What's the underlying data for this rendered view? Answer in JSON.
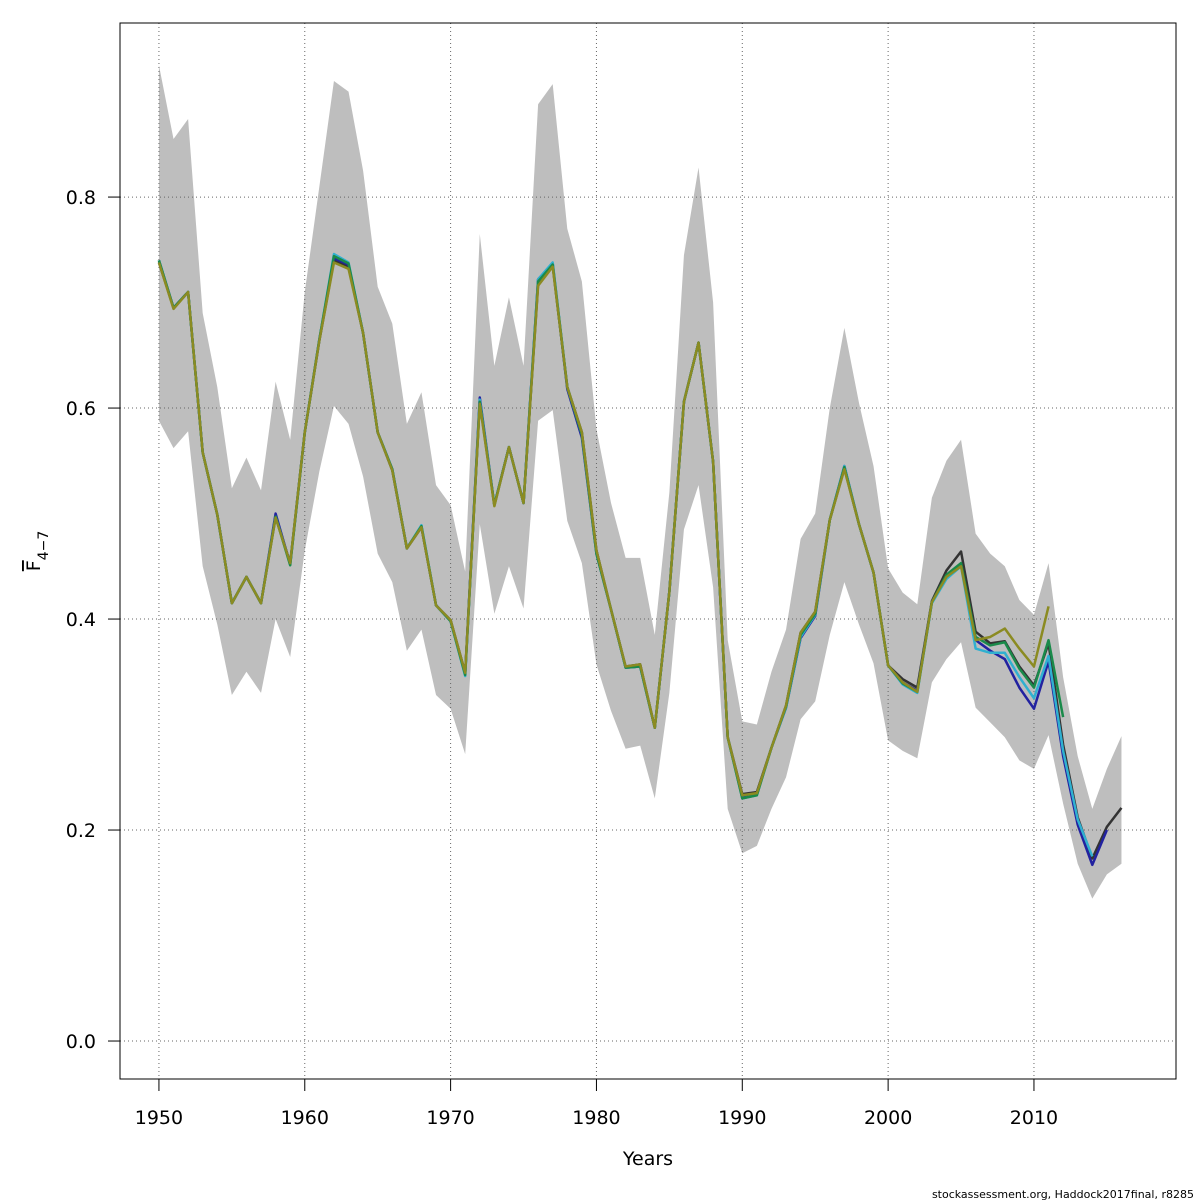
{
  "chart_data": {
    "type": "line",
    "xlabel": "Years",
    "ylabel": {
      "main": "F",
      "sub": "4−7"
    },
    "footnote": "stockassessment.org, Haddock2017final, r8285",
    "x": [
      1950,
      1951,
      1952,
      1953,
      1954,
      1955,
      1956,
      1957,
      1958,
      1959,
      1960,
      1961,
      1962,
      1963,
      1964,
      1965,
      1966,
      1967,
      1968,
      1969,
      1970,
      1971,
      1972,
      1973,
      1974,
      1975,
      1976,
      1977,
      1978,
      1979,
      1980,
      1981,
      1982,
      1983,
      1984,
      1985,
      1986,
      1987,
      1988,
      1989,
      1990,
      1991,
      1992,
      1993,
      1994,
      1995,
      1996,
      1997,
      1998,
      1999,
      2000,
      2001,
      2002,
      2003,
      2004,
      2005,
      2006,
      2007,
      2008,
      2009,
      2010,
      2011,
      2012,
      2013,
      2014,
      2015,
      2016
    ],
    "band": {
      "color": "#bebebe",
      "upper": [
        0.925,
        0.855,
        0.874,
        0.69,
        0.62,
        0.524,
        0.553,
        0.522,
        0.625,
        0.57,
        0.71,
        0.81,
        0.91,
        0.9,
        0.825,
        0.715,
        0.68,
        0.585,
        0.615,
        0.527,
        0.508,
        0.445,
        0.765,
        0.64,
        0.705,
        0.64,
        0.888,
        0.907,
        0.77,
        0.72,
        0.58,
        0.51,
        0.458,
        0.458,
        0.385,
        0.52,
        0.745,
        0.828,
        0.7,
        0.38,
        0.303,
        0.3,
        0.35,
        0.39,
        0.476,
        0.5,
        0.6,
        0.676,
        0.605,
        0.545,
        0.448,
        0.425,
        0.414,
        0.515,
        0.55,
        0.57,
        0.481,
        0.462,
        0.45,
        0.418,
        0.404,
        0.453,
        0.345,
        0.27,
        0.22,
        0.258,
        0.289
      ],
      "lower": [
        0.588,
        0.562,
        0.578,
        0.45,
        0.395,
        0.328,
        0.35,
        0.33,
        0.4,
        0.364,
        0.465,
        0.54,
        0.602,
        0.585,
        0.535,
        0.462,
        0.435,
        0.37,
        0.39,
        0.328,
        0.315,
        0.272,
        0.49,
        0.405,
        0.45,
        0.41,
        0.588,
        0.598,
        0.493,
        0.453,
        0.357,
        0.313,
        0.277,
        0.28,
        0.23,
        0.33,
        0.485,
        0.527,
        0.43,
        0.22,
        0.178,
        0.185,
        0.22,
        0.25,
        0.305,
        0.322,
        0.385,
        0.435,
        0.395,
        0.358,
        0.285,
        0.275,
        0.268,
        0.34,
        0.362,
        0.378,
        0.316,
        0.302,
        0.288,
        0.266,
        0.258,
        0.29,
        0.225,
        0.168,
        0.135,
        0.158,
        0.168
      ]
    },
    "series": [
      {
        "color": "#333333",
        "values": [
          0.738,
          0.695,
          0.71,
          0.558,
          0.499,
          0.415,
          0.44,
          0.415,
          0.497,
          0.453,
          0.577,
          0.664,
          0.74,
          0.734,
          0.671,
          0.577,
          0.541,
          0.467,
          0.487,
          0.413,
          0.399,
          0.349,
          0.606,
          0.508,
          0.563,
          0.51,
          0.718,
          0.735,
          0.62,
          0.577,
          0.465,
          0.409,
          0.355,
          0.357,
          0.297,
          0.426,
          0.606,
          0.662,
          0.549,
          0.288,
          0.234,
          0.236,
          0.278,
          0.318,
          0.387,
          0.407,
          0.494,
          0.543,
          0.49,
          0.444,
          0.356,
          0.343,
          0.335,
          0.417,
          0.446,
          0.464,
          0.388,
          0.377,
          0.379,
          0.355,
          0.337,
          0.377,
          0.281,
          0.212,
          0.173,
          0.203,
          0.221
        ]
      },
      {
        "color": "#2222a0",
        "values": [
          0.74,
          0.695,
          0.71,
          0.558,
          0.499,
          0.415,
          0.44,
          0.415,
          0.5,
          0.452,
          0.577,
          0.665,
          0.742,
          0.736,
          0.671,
          0.577,
          0.542,
          0.467,
          0.488,
          0.413,
          0.398,
          0.348,
          0.61,
          0.508,
          0.563,
          0.51,
          0.722,
          0.737,
          0.618,
          0.572,
          0.462,
          0.409,
          0.354,
          0.355,
          0.297,
          0.426,
          0.606,
          0.662,
          0.549,
          0.288,
          0.231,
          0.234,
          0.278,
          0.316,
          0.382,
          0.403,
          0.494,
          0.545,
          0.49,
          0.444,
          0.356,
          0.34,
          0.332,
          0.416,
          0.44,
          0.452,
          0.38,
          0.37,
          0.362,
          0.335,
          0.315,
          0.36,
          0.27,
          0.205,
          0.167,
          0.2,
          null
        ]
      },
      {
        "color": "#30b0d0",
        "values": [
          0.74,
          0.695,
          0.71,
          0.558,
          0.499,
          0.415,
          0.44,
          0.415,
          0.497,
          0.452,
          0.577,
          0.665,
          0.746,
          0.738,
          0.671,
          0.577,
          0.542,
          0.467,
          0.489,
          0.413,
          0.398,
          0.346,
          0.608,
          0.508,
          0.563,
          0.51,
          0.722,
          0.738,
          0.62,
          0.575,
          0.462,
          0.409,
          0.354,
          0.355,
          0.297,
          0.426,
          0.606,
          0.662,
          0.549,
          0.288,
          0.23,
          0.233,
          0.278,
          0.316,
          0.383,
          0.404,
          0.494,
          0.545,
          0.49,
          0.444,
          0.356,
          0.338,
          0.33,
          0.415,
          0.438,
          0.45,
          0.372,
          0.368,
          0.368,
          0.345,
          0.325,
          0.365,
          0.275,
          0.21,
          0.175,
          null,
          null
        ]
      },
      {
        "color": "#1a8a4a",
        "values": [
          0.74,
          0.695,
          0.71,
          0.558,
          0.499,
          0.415,
          0.44,
          0.415,
          0.497,
          0.451,
          0.577,
          0.665,
          0.744,
          0.737,
          0.671,
          0.577,
          0.542,
          0.467,
          0.488,
          0.413,
          0.398,
          0.347,
          0.606,
          0.508,
          0.563,
          0.51,
          0.72,
          0.736,
          0.62,
          0.575,
          0.462,
          0.409,
          0.354,
          0.355,
          0.297,
          0.426,
          0.606,
          0.662,
          0.549,
          0.288,
          0.23,
          0.233,
          0.278,
          0.317,
          0.385,
          0.405,
          0.494,
          0.544,
          0.49,
          0.444,
          0.356,
          0.339,
          0.331,
          0.416,
          0.442,
          0.453,
          0.383,
          0.375,
          0.378,
          0.353,
          0.335,
          0.38,
          0.307,
          null,
          null,
          null,
          null
        ]
      },
      {
        "color": "#8b8b22",
        "values": [
          0.738,
          0.694,
          0.71,
          0.558,
          0.499,
          0.415,
          0.44,
          0.415,
          0.496,
          0.453,
          0.577,
          0.664,
          0.738,
          0.732,
          0.671,
          0.577,
          0.541,
          0.467,
          0.487,
          0.413,
          0.399,
          0.349,
          0.604,
          0.507,
          0.563,
          0.51,
          0.716,
          0.734,
          0.62,
          0.577,
          0.465,
          0.409,
          0.355,
          0.357,
          0.297,
          0.426,
          0.606,
          0.662,
          0.549,
          0.288,
          0.233,
          0.235,
          0.278,
          0.318,
          0.387,
          0.407,
          0.494,
          0.542,
          0.49,
          0.444,
          0.356,
          0.34,
          0.331,
          0.416,
          0.44,
          0.45,
          0.38,
          0.383,
          0.391,
          0.372,
          0.355,
          0.412,
          null,
          null,
          null,
          null,
          null
        ]
      }
    ],
    "xlim": [
      1947.33,
      2019.74
    ],
    "ylim": [
      -0.036,
      0.965
    ],
    "xticks": [
      1950,
      1960,
      1970,
      1980,
      1990,
      2000,
      2010
    ],
    "yticks": [
      {
        "value": 0,
        "label": "0.0"
      },
      0.2,
      0.4,
      0.6,
      0.8
    ],
    "grid": true
  }
}
